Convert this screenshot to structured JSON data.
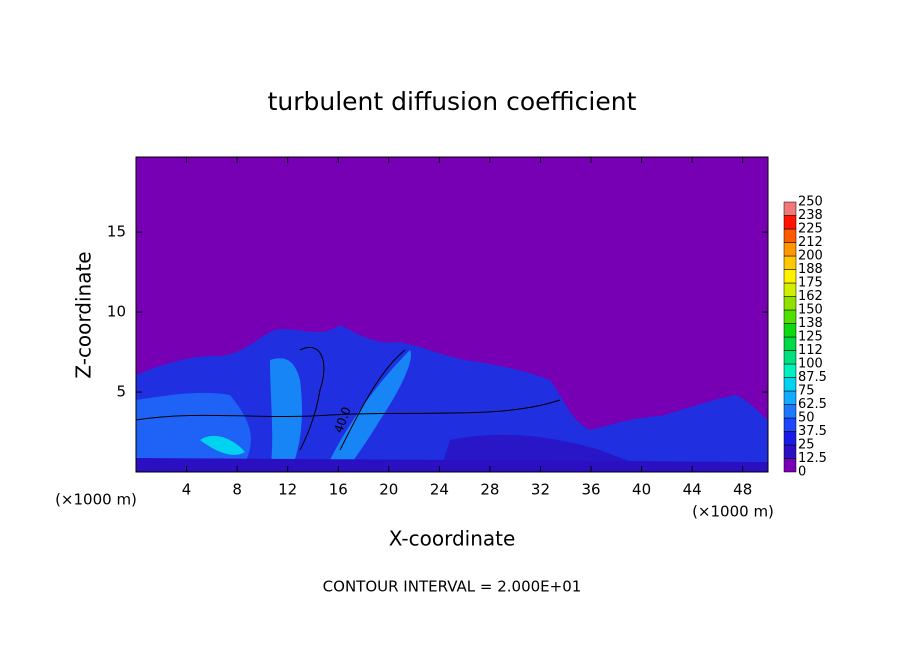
{
  "chart_data": {
    "type": "contour",
    "title": "turbulent diffusion coefficient",
    "xlabel": "X-coordinate",
    "ylabel": "Z-coordinate",
    "xunit": "(×1000 m)",
    "yunit": "(×1000 m)",
    "footnote": "CONTOUR INTERVAL = 2.000E+01",
    "contour_label": "40.0",
    "xlim": [
      0,
      50
    ],
    "xticks": [
      4,
      8,
      12,
      16,
      20,
      24,
      28,
      32,
      36,
      40,
      44,
      48
    ],
    "ylim": [
      0,
      19.7
    ],
    "yticks": [
      5,
      10,
      15
    ],
    "levels": [
      0,
      12.5,
      25,
      37.5,
      50,
      62.5,
      75,
      87.5,
      100,
      112,
      125,
      138,
      150,
      162,
      175,
      188,
      200,
      212,
      225,
      238,
      250
    ],
    "colors": [
      "#7800b4",
      "#2a10c0",
      "#1a1ae6",
      "#1e46ff",
      "#1e78ff",
      "#14aaff",
      "#00d2f0",
      "#00f0c0",
      "#00e080",
      "#00d848",
      "#10d810",
      "#50e000",
      "#90e000",
      "#d0f000",
      "#fff000",
      "#ffc800",
      "#ff9600",
      "#ff5a00",
      "#ff1400",
      "#f07878"
    ]
  }
}
